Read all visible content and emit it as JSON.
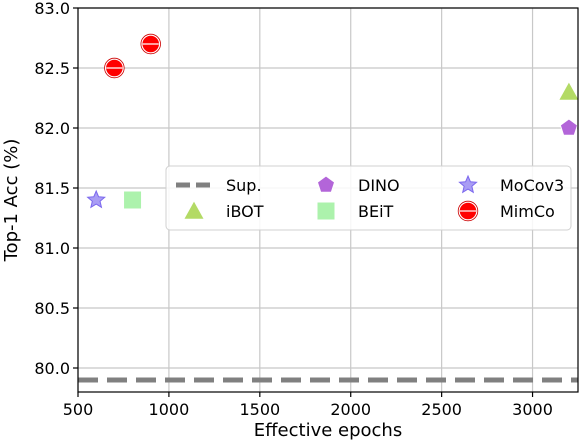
{
  "chart_data": {
    "type": "scatter",
    "xlabel": "Effective epochs",
    "ylabel": "Top-1 Acc (%)",
    "xlim": [
      500,
      3250
    ],
    "ylim": [
      79.8,
      83.0
    ],
    "xticks": [
      500,
      1000,
      1500,
      2000,
      2500,
      3000
    ],
    "yticks": [
      80.0,
      80.5,
      81.0,
      81.5,
      82.0,
      82.5,
      83.0
    ],
    "xtick_labels": [
      "500",
      "1000",
      "1500",
      "2000",
      "2500",
      "3000"
    ],
    "ytick_labels": [
      "80.0",
      "80.5",
      "81.0",
      "81.5",
      "82.0",
      "82.5",
      "83.0"
    ],
    "grid": true,
    "legend_placement": "center-right",
    "reference_line": {
      "name": "Sup.",
      "y": 79.9,
      "color": "#808080",
      "style": "dashed"
    },
    "series": [
      {
        "name": "iBOT",
        "marker": "triangle",
        "color": "#9acd32",
        "points": [
          {
            "x": 3200,
            "y": 82.3
          }
        ]
      },
      {
        "name": "DINO",
        "marker": "pentagon",
        "color": "#9932cc",
        "points": [
          {
            "x": 3200,
            "y": 82.0
          }
        ]
      },
      {
        "name": "BEiT",
        "marker": "square",
        "color": "#90ee90",
        "points": [
          {
            "x": 800,
            "y": 81.4
          }
        ]
      },
      {
        "name": "MoCov3",
        "marker": "star",
        "color": "#7b68ee",
        "points": [
          {
            "x": 600,
            "y": 81.4
          }
        ]
      },
      {
        "name": "MimCo",
        "marker": "circle",
        "color": "#ff0000",
        "points": [
          {
            "x": 700,
            "y": 82.5
          },
          {
            "x": 900,
            "y": 82.7
          }
        ]
      }
    ]
  }
}
